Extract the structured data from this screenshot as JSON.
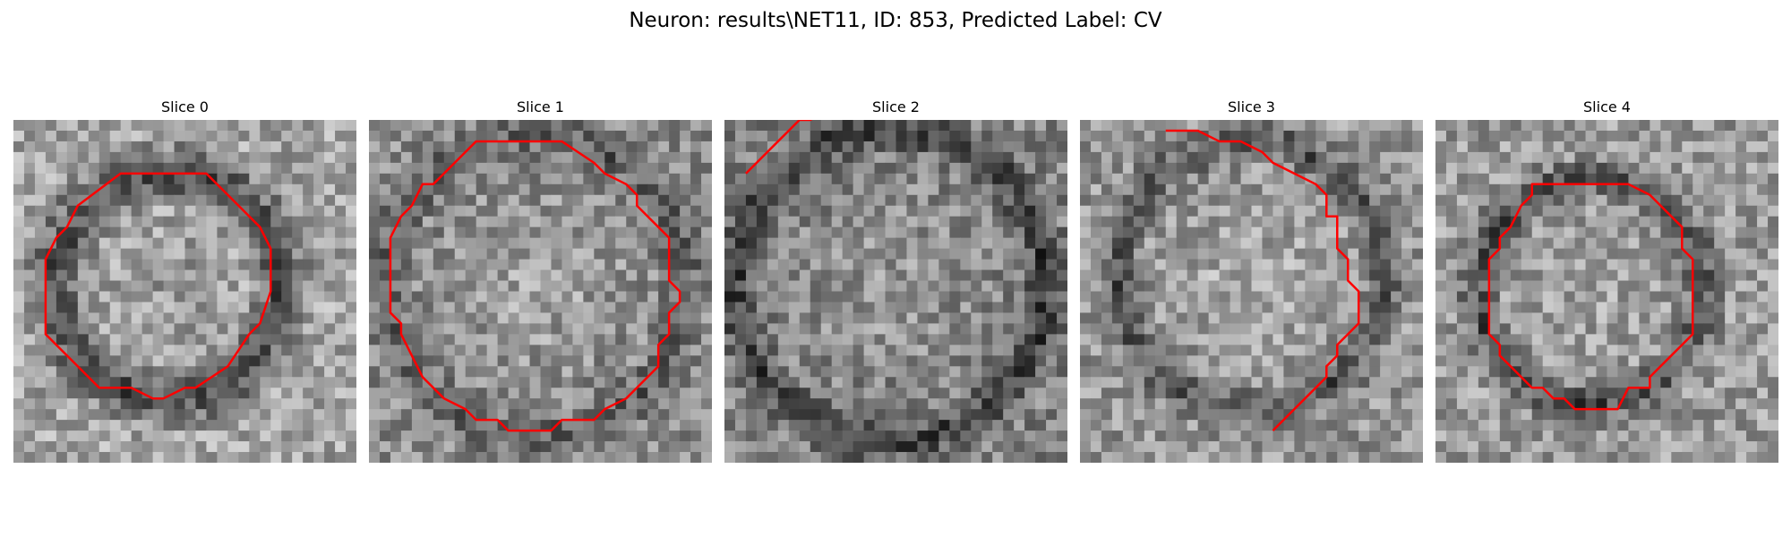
{
  "title": "Neuron: results\\NET11, ID: 853, Predicted Label: CV",
  "colors": {
    "contour": "#ff0000",
    "background": "#ffffff"
  },
  "panels": [
    {
      "title": "Slice 0",
      "contour_points": [
        [
          13,
          5
        ],
        [
          18,
          5
        ],
        [
          23,
          10
        ],
        [
          24,
          12
        ],
        [
          24,
          16
        ],
        [
          23,
          19
        ],
        [
          22,
          20
        ],
        [
          20,
          23
        ],
        [
          17,
          25
        ],
        [
          16,
          25
        ],
        [
          14,
          26
        ],
        [
          13,
          26
        ],
        [
          11,
          25
        ],
        [
          8,
          25
        ],
        [
          6,
          23
        ],
        [
          4,
          21
        ],
        [
          3,
          20
        ],
        [
          3,
          13
        ],
        [
          4,
          11
        ],
        [
          5,
          10
        ],
        [
          6,
          8
        ],
        [
          10,
          5
        ],
        [
          13,
          5
        ]
      ],
      "closed": true
    },
    {
      "title": "Slice 1",
      "contour_points": [
        [
          10,
          2
        ],
        [
          18,
          2
        ],
        [
          21,
          4
        ],
        [
          22,
          5
        ],
        [
          24,
          6
        ],
        [
          25,
          7
        ],
        [
          25,
          8
        ],
        [
          26,
          9
        ],
        [
          27,
          10
        ],
        [
          28,
          11
        ],
        [
          28,
          14
        ],
        [
          28,
          15
        ],
        [
          29,
          16
        ],
        [
          29,
          17
        ],
        [
          28,
          18
        ],
        [
          28,
          20
        ],
        [
          27,
          21
        ],
        [
          27,
          23
        ],
        [
          26,
          24
        ],
        [
          25,
          25
        ],
        [
          24,
          26
        ],
        [
          22,
          27
        ],
        [
          21,
          28
        ],
        [
          20,
          28
        ],
        [
          18,
          28
        ],
        [
          17,
          29
        ],
        [
          13,
          29
        ],
        [
          12,
          28
        ],
        [
          10,
          28
        ],
        [
          9,
          27
        ],
        [
          7,
          26
        ],
        [
          5,
          24
        ],
        [
          4,
          22
        ],
        [
          3,
          20
        ],
        [
          3,
          19
        ],
        [
          2,
          18
        ],
        [
          2,
          17
        ],
        [
          2,
          11
        ],
        [
          3,
          9
        ],
        [
          4,
          8
        ],
        [
          5,
          6
        ],
        [
          6,
          6
        ],
        [
          7,
          5
        ],
        [
          8,
          4
        ],
        [
          9,
          3
        ],
        [
          10,
          2
        ]
      ],
      "closed": true
    },
    {
      "title": "Slice 2",
      "contour_points": [
        [
          2,
          5
        ],
        [
          3,
          4
        ],
        [
          4,
          3
        ],
        [
          5,
          2
        ],
        [
          6,
          1
        ],
        [
          7,
          0
        ],
        [
          8,
          0
        ],
        [
          10,
          -1
        ],
        [
          12,
          -1
        ]
      ],
      "closed": false
    },
    {
      "title": "Slice 3",
      "contour_points": [
        [
          8,
          1
        ],
        [
          11,
          1
        ],
        [
          13,
          2
        ],
        [
          15,
          2
        ],
        [
          17,
          3
        ],
        [
          18,
          4
        ],
        [
          20,
          5
        ],
        [
          22,
          6
        ],
        [
          23,
          7
        ],
        [
          23,
          9
        ],
        [
          24,
          9
        ],
        [
          24,
          11
        ],
        [
          24,
          12
        ],
        [
          25,
          13
        ],
        [
          25,
          15
        ],
        [
          26,
          16
        ],
        [
          26,
          17
        ],
        [
          26,
          19
        ],
        [
          25,
          20
        ],
        [
          24,
          21
        ],
        [
          24,
          22
        ],
        [
          23,
          23
        ],
        [
          23,
          24
        ],
        [
          22,
          25
        ],
        [
          21,
          26
        ],
        [
          20,
          27
        ],
        [
          18,
          29
        ]
      ],
      "closed": false
    },
    {
      "title": "Slice 4",
      "contour_points": [
        [
          9,
          6
        ],
        [
          18,
          6
        ],
        [
          20,
          7
        ],
        [
          21,
          8
        ],
        [
          22,
          9
        ],
        [
          23,
          10
        ],
        [
          23,
          11
        ],
        [
          23,
          12
        ],
        [
          24,
          13
        ],
        [
          24,
          20
        ],
        [
          23,
          21
        ],
        [
          22,
          22
        ],
        [
          21,
          23
        ],
        [
          20,
          24
        ],
        [
          20,
          25
        ],
        [
          18,
          25
        ],
        [
          17,
          27
        ],
        [
          13,
          27
        ],
        [
          12,
          26
        ],
        [
          11,
          26
        ],
        [
          10,
          25
        ],
        [
          9,
          25
        ],
        [
          8,
          24
        ],
        [
          7,
          23
        ],
        [
          6,
          22
        ],
        [
          6,
          21
        ],
        [
          5,
          20
        ],
        [
          5,
          15
        ],
        [
          5,
          13
        ],
        [
          6,
          12
        ],
        [
          6,
          11
        ],
        [
          7,
          10
        ],
        [
          8,
          8
        ],
        [
          9,
          7
        ],
        [
          9,
          6
        ]
      ],
      "closed": true
    }
  ]
}
